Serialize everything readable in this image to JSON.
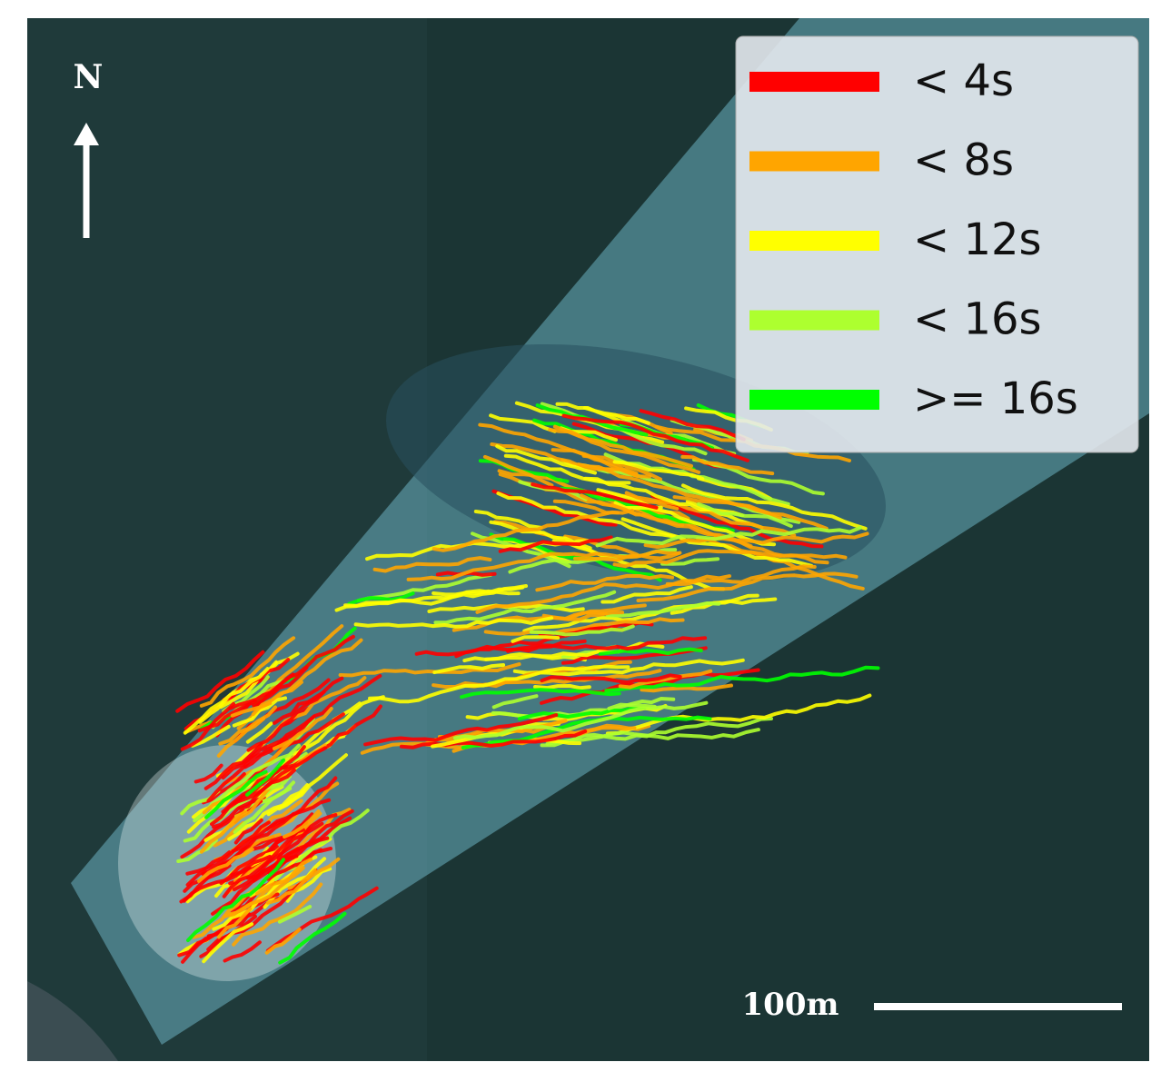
{
  "north_label": "N",
  "legend": {
    "items": [
      {
        "label": "< 4s",
        "color": "#ff0000"
      },
      {
        "label": "< 8s",
        "color": "#ffa500"
      },
      {
        "label": "< 12s",
        "color": "#ffff00"
      },
      {
        "label": "< 16s",
        "color": "#adff2f"
      },
      {
        "label": ">= 16s",
        "color": "#00ff00"
      }
    ]
  },
  "scale_bar": {
    "label": "100m"
  }
}
